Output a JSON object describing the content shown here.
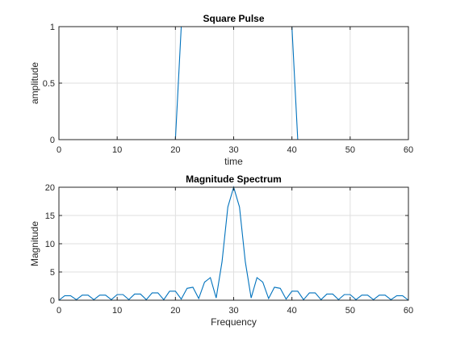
{
  "chart_data": [
    {
      "type": "line",
      "title": "Square Pulse",
      "xlabel": "time",
      "ylabel": "amplitude",
      "xlim": [
        0,
        60
      ],
      "ylim": [
        0,
        1
      ],
      "xticks": [
        0,
        10,
        20,
        30,
        40,
        50,
        60
      ],
      "yticks": [
        0,
        0.5,
        1
      ],
      "grid": true,
      "color": "#0072bd",
      "x": [
        0,
        20,
        21,
        40,
        41,
        60
      ],
      "y": [
        0,
        0,
        1,
        1,
        0,
        0
      ]
    },
    {
      "type": "line",
      "title": "Magnitude Spectrum",
      "xlabel": "Frequency",
      "ylabel": "Magnitude",
      "xlim": [
        0,
        60
      ],
      "ylim": [
        0,
        20
      ],
      "xticks": [
        0,
        10,
        20,
        30,
        40,
        50,
        60
      ],
      "yticks": [
        0,
        5,
        10,
        15,
        20
      ],
      "grid": true,
      "color": "#0072bd",
      "x": [
        0,
        1,
        2,
        3,
        4,
        5,
        6,
        7,
        8,
        9,
        10,
        11,
        12,
        13,
        14,
        15,
        16,
        17,
        18,
        19,
        20,
        21,
        22,
        23,
        24,
        25,
        26,
        27,
        28,
        29,
        30,
        31,
        32,
        33,
        34,
        35,
        36,
        37,
        38,
        39,
        40,
        41,
        42,
        43,
        44,
        45,
        46,
        47,
        48,
        49,
        50,
        51,
        52,
        53,
        54,
        55,
        56,
        57,
        58,
        59,
        60
      ],
      "y": [
        0,
        0.8,
        0.8,
        0.1,
        0.9,
        0.9,
        0.1,
        0.9,
        0.9,
        0.1,
        1.0,
        1.0,
        0.1,
        1.1,
        1.1,
        0.1,
        1.3,
        1.3,
        0.1,
        1.6,
        1.6,
        0.2,
        2.1,
        2.3,
        0.3,
        3.2,
        4.0,
        0.4,
        6.8,
        16.5,
        20.0,
        16.5,
        6.8,
        0.4,
        4.0,
        3.2,
        0.3,
        2.3,
        2.1,
        0.2,
        1.6,
        1.6,
        0.1,
        1.3,
        1.3,
        0.1,
        1.1,
        1.1,
        0.1,
        1.0,
        1.0,
        0.1,
        0.9,
        0.9,
        0.1,
        0.9,
        0.9,
        0.1,
        0.8,
        0.8,
        0
      ]
    }
  ]
}
